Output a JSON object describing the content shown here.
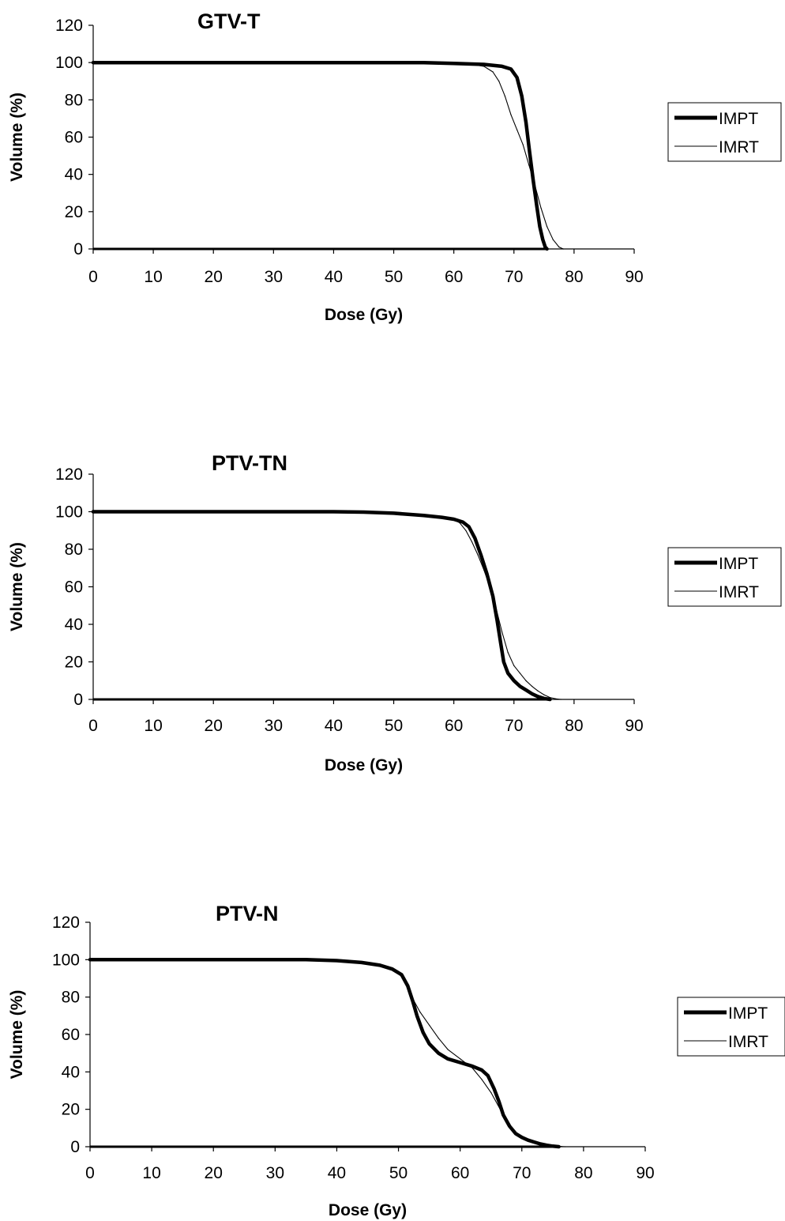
{
  "chart_data": [
    {
      "type": "line",
      "title": "GTV-T",
      "xlabel": "Dose (Gy)",
      "ylabel": "Volume (%)",
      "xlim": [
        0,
        90
      ],
      "ylim": [
        0,
        120
      ],
      "xticks": [
        "0",
        "10",
        "20",
        "30",
        "40",
        "50",
        "60",
        "70",
        "80",
        "90"
      ],
      "yticks": [
        "0",
        "20",
        "40",
        "60",
        "80",
        "100",
        "120"
      ],
      "grid": false,
      "legend_position": "right",
      "series": [
        {
          "name": "IMPT",
          "color": "#000000",
          "style": "thick",
          "x": [
            0,
            20,
            40,
            55,
            60,
            65,
            68,
            69.5,
            70.5,
            71.3,
            72,
            72.6,
            73.2,
            73.8,
            74.3,
            74.8,
            75.2,
            75.5
          ],
          "y": [
            100,
            100,
            100,
            100,
            99.5,
            99,
            98,
            96.5,
            92,
            82,
            68,
            52,
            37,
            23,
            12,
            5,
            1,
            0
          ]
        },
        {
          "name": "IMRT",
          "color": "#000000",
          "style": "thin",
          "x": [
            0,
            20,
            40,
            55,
            60,
            63,
            65,
            66.5,
            67.5,
            68.5,
            69.5,
            70.5,
            71.5,
            72.5,
            73.5,
            74.5,
            75.5,
            76.5,
            77.5,
            78.2
          ],
          "y": [
            100,
            100,
            100,
            100,
            99.5,
            99,
            98,
            95,
            90,
            82,
            72,
            64,
            56,
            45,
            34,
            22,
            12,
            5,
            1,
            0
          ]
        }
      ]
    },
    {
      "type": "line",
      "title": "PTV-TN",
      "xlabel": "Dose (Gy)",
      "ylabel": "Volume (%)",
      "xlim": [
        0,
        90
      ],
      "ylim": [
        0,
        120
      ],
      "xticks": [
        "0",
        "10",
        "20",
        "30",
        "40",
        "50",
        "60",
        "70",
        "80",
        "90"
      ],
      "yticks": [
        "0",
        "20",
        "40",
        "60",
        "80",
        "100",
        "120"
      ],
      "grid": false,
      "legend_position": "right",
      "series": [
        {
          "name": "IMPT",
          "color": "#000000",
          "style": "thick",
          "x": [
            0,
            20,
            40,
            45,
            50,
            55,
            58,
            60,
            61.5,
            62.5,
            63.5,
            64.5,
            65.5,
            66.5,
            67.2,
            67.8,
            68.3,
            69,
            70,
            71,
            72,
            73,
            74,
            75,
            76
          ],
          "y": [
            100,
            100,
            100,
            99.8,
            99.2,
            98,
            97,
            96,
            94.5,
            92,
            86,
            77,
            67,
            55,
            42,
            30,
            20,
            14,
            10,
            7,
            5,
            3,
            1.5,
            0.5,
            0
          ]
        },
        {
          "name": "IMRT",
          "color": "#000000",
          "style": "thin",
          "x": [
            0,
            20,
            40,
            45,
            50,
            55,
            58,
            60,
            61,
            62,
            63,
            64,
            65,
            66,
            67,
            68,
            69,
            70,
            71,
            72,
            73,
            74,
            75,
            76,
            77,
            77.8
          ],
          "y": [
            100,
            100,
            100,
            99.8,
            99.2,
            98,
            97,
            96,
            94,
            90,
            84,
            77,
            69,
            60,
            49,
            36,
            25,
            18,
            14,
            10,
            7,
            4.5,
            2.5,
            1,
            0.3,
            0
          ]
        }
      ]
    },
    {
      "type": "line",
      "title": "PTV-N",
      "xlabel": "Dose (Gy)",
      "ylabel": "Volume (%)",
      "xlim": [
        0,
        90
      ],
      "ylim": [
        0,
        120
      ],
      "xticks": [
        "0",
        "10",
        "20",
        "30",
        "40",
        "50",
        "60",
        "70",
        "80",
        "90"
      ],
      "yticks": [
        "0",
        "20",
        "40",
        "60",
        "80",
        "100",
        "120"
      ],
      "grid": false,
      "legend_position": "right",
      "series": [
        {
          "name": "IMPT",
          "color": "#000000",
          "style": "thick",
          "x": [
            0,
            20,
            35,
            40,
            44,
            47,
            49,
            50.5,
            51.5,
            52.3,
            53,
            54,
            55,
            56.5,
            58,
            60,
            62,
            63.5,
            64.5,
            65.5,
            66.3,
            67,
            68,
            69,
            70,
            71,
            72,
            73,
            74,
            75,
            76
          ],
          "y": [
            100,
            100,
            100,
            99.5,
            98.5,
            97,
            95,
            92,
            86,
            78,
            70,
            61,
            55,
            50,
            47,
            45,
            43,
            41,
            38,
            31,
            24,
            17,
            11,
            7,
            5,
            3.5,
            2.5,
            1.5,
            0.8,
            0.3,
            0
          ]
        },
        {
          "name": "IMRT",
          "color": "#000000",
          "style": "thin",
          "x": [
            0,
            20,
            35,
            40,
            44,
            47,
            49,
            50.5,
            51.5,
            52.5,
            53.5,
            55,
            56.5,
            58,
            60,
            62,
            63.5,
            65,
            66.5,
            67.5,
            68.5,
            69.5,
            71,
            72.5,
            74,
            75.5,
            76.5,
            77
          ],
          "y": [
            100,
            100,
            100,
            99.5,
            98.5,
            97,
            95,
            91,
            85,
            78,
            72,
            65,
            58,
            52,
            47,
            42,
            36,
            29,
            20,
            13,
            9,
            6.5,
            4,
            2.5,
            1.2,
            0.4,
            0.1,
            0
          ]
        }
      ]
    }
  ]
}
